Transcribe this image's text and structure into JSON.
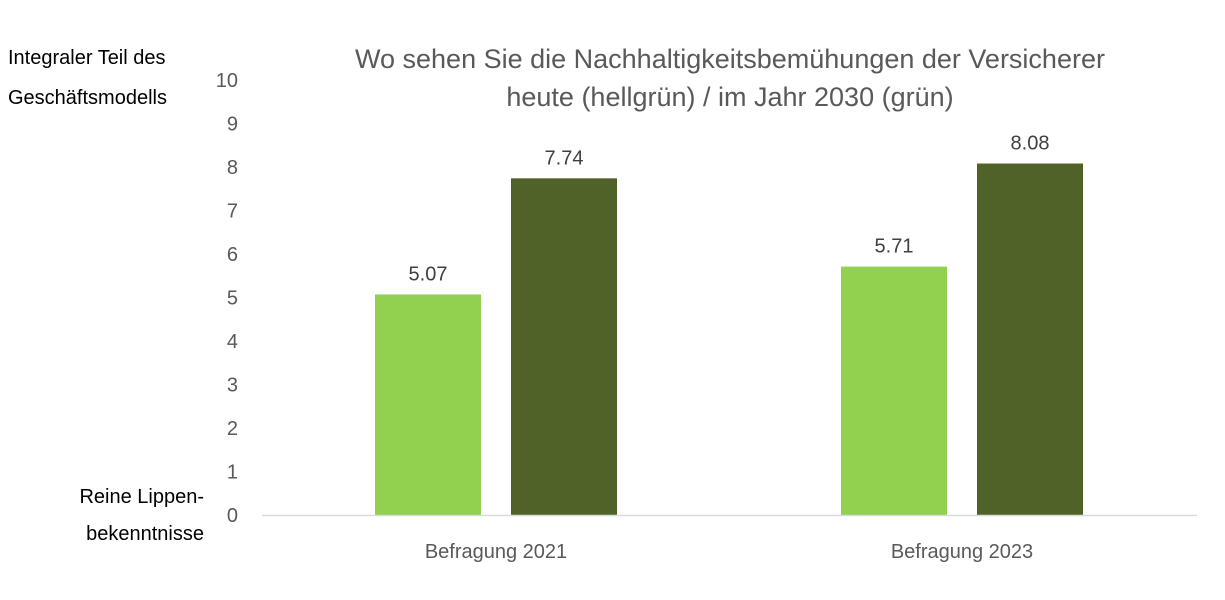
{
  "chart_data": {
    "type": "bar",
    "title": [
      "Wo sehen Sie die Nachhaltigkeitsbemühungen der Versicherer",
      "heute (hellgrün) / im Jahr 2030 (grün)"
    ],
    "categories": [
      "Befragung 2021",
      "Befragung 2023"
    ],
    "series": [
      {
        "values": [
          5.07,
          5.71
        ],
        "color": "#92d050"
      },
      {
        "values": [
          7.74,
          8.08
        ],
        "color": "#4f6228"
      }
    ],
    "data_labels": [
      [
        "5.07",
        "5.71"
      ],
      [
        "7.74",
        "8.08"
      ]
    ],
    "ylim": [
      0,
      10
    ],
    "yticks": [
      0,
      1,
      2,
      3,
      4,
      5,
      6,
      7,
      8,
      9,
      10
    ],
    "y_top_label": [
      "Integraler Teil des",
      "Geschäftsmodells"
    ],
    "y_bottom_label": [
      "Reine Lippen-",
      "bekenntnisse"
    ],
    "grid": false,
    "axis_color": "#d9d9d9"
  }
}
